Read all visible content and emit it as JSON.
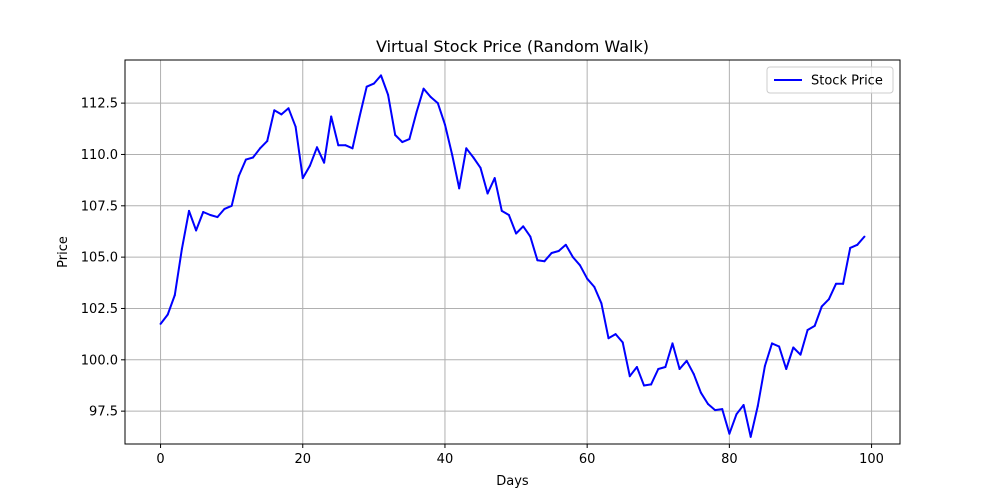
{
  "chart_data": {
    "type": "line",
    "title": "Virtual Stock Price (Random Walk)",
    "xlabel": "Days",
    "ylabel": "Price",
    "xlim": [
      -5,
      104
    ],
    "ylim": [
      95.9,
      114.6
    ],
    "xticks": [
      0,
      20,
      40,
      60,
      80,
      100
    ],
    "xtick_labels": [
      "0",
      "20",
      "40",
      "60",
      "80",
      "100"
    ],
    "yticks": [
      97.5,
      100.0,
      102.5,
      105.0,
      107.5,
      110.0,
      112.5
    ],
    "ytick_labels": [
      "97.5",
      "100.0",
      "102.5",
      "105.0",
      "107.5",
      "110.0",
      "112.5"
    ],
    "grid": true,
    "legend": {
      "position": "top-right"
    },
    "series": [
      {
        "name": "Stock Price",
        "color": "#0000ff",
        "x": [
          0,
          1,
          2,
          3,
          4,
          5,
          6,
          7,
          8,
          9,
          10,
          11,
          12,
          13,
          14,
          15,
          16,
          17,
          18,
          19,
          20,
          21,
          22,
          23,
          24,
          25,
          26,
          27,
          28,
          29,
          30,
          31,
          32,
          33,
          34,
          35,
          36,
          37,
          38,
          39,
          40,
          41,
          42,
          43,
          44,
          45,
          46,
          47,
          48,
          49,
          50,
          51,
          52,
          53,
          54,
          55,
          56,
          57,
          58,
          59,
          60,
          61,
          62,
          63,
          64,
          65,
          66,
          67,
          68,
          69,
          70,
          71,
          72,
          73,
          74,
          75,
          76,
          77,
          78,
          79,
          80,
          81,
          82,
          83,
          84,
          85,
          86,
          87,
          88,
          89,
          90,
          91,
          92,
          93,
          94,
          95,
          96,
          97,
          98,
          99
        ],
        "values": [
          101.75,
          102.2,
          103.15,
          105.4,
          107.25,
          106.3,
          107.2,
          107.05,
          106.95,
          107.35,
          107.5,
          108.95,
          109.75,
          109.85,
          110.3,
          110.65,
          112.15,
          111.95,
          112.25,
          111.35,
          108.85,
          109.45,
          110.35,
          109.6,
          111.85,
          110.45,
          110.45,
          110.3,
          111.85,
          113.3,
          113.45,
          113.85,
          112.9,
          110.95,
          110.6,
          110.75,
          112.05,
          113.2,
          112.8,
          112.5,
          111.45,
          110.0,
          108.35,
          110.3,
          109.85,
          109.35,
          108.1,
          108.85,
          107.25,
          107.05,
          106.15,
          106.5,
          106.0,
          104.85,
          104.8,
          105.2,
          105.3,
          105.6,
          105.0,
          104.6,
          103.95,
          103.55,
          102.75,
          101.05,
          101.25,
          100.85,
          99.2,
          99.65,
          98.75,
          98.8,
          99.55,
          99.65,
          100.8,
          99.55,
          99.95,
          99.3,
          98.4,
          97.85,
          97.55,
          97.6,
          96.4,
          97.35,
          97.8,
          96.25,
          97.75,
          99.7,
          100.8,
          100.65,
          99.55,
          100.6,
          100.25,
          101.45,
          101.65,
          102.6,
          102.95,
          103.7,
          103.7,
          105.45,
          105.6,
          106.0
        ]
      }
    ]
  }
}
